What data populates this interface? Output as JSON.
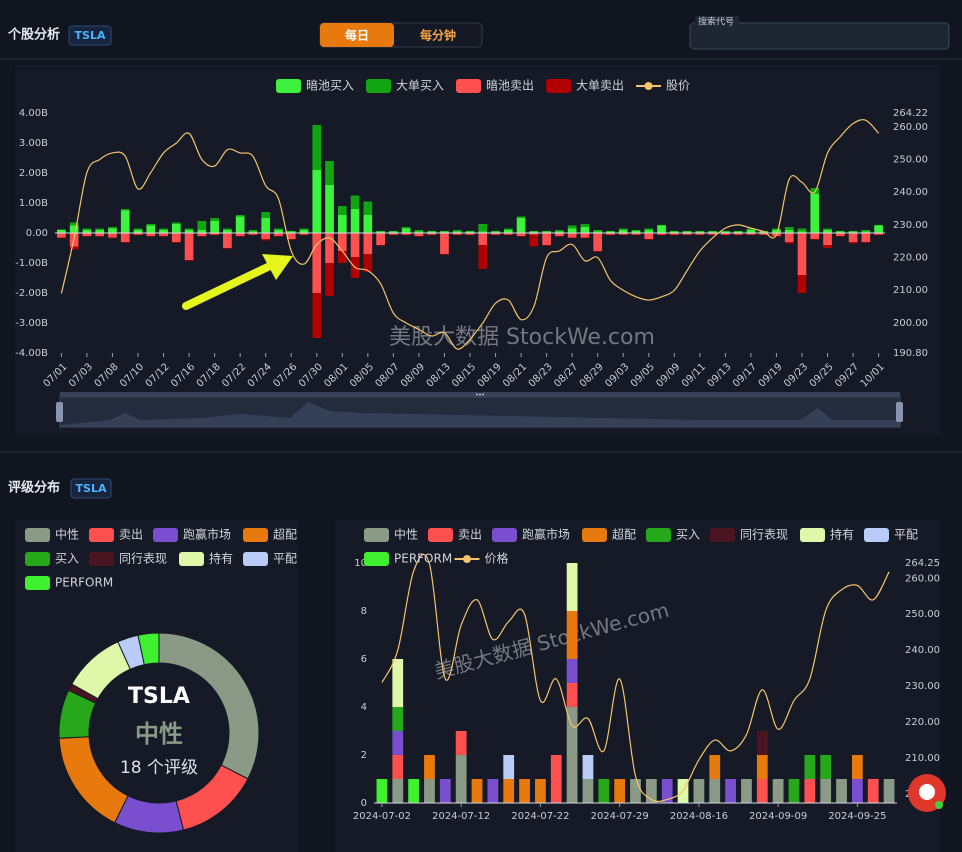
{
  "header": {
    "title": "个股分析",
    "ticker": "TSLA",
    "tabs": [
      "每日",
      "每分钟"
    ],
    "search_placeholder": "搜索代号"
  },
  "rating_section": {
    "title": "评级分布",
    "ticker": "TSLA"
  },
  "chart_data": [
    {
      "type": "bar",
      "stacked": true,
      "watermark": "美股大数据 StockWe.com",
      "categories": [
        "07/01",
        null,
        "07/03",
        null,
        "07/08",
        null,
        "07/10",
        null,
        "07/12",
        null,
        "07/16",
        null,
        "07/18",
        null,
        "07/22",
        null,
        "07/24",
        null,
        "07/26",
        null,
        "07/30",
        null,
        "08/01",
        null,
        "08/05",
        null,
        "08/07",
        null,
        "08/09",
        null,
        "08/13",
        null,
        "08/15",
        null,
        "08/19",
        null,
        "08/21",
        null,
        "08/23",
        null,
        "08/27",
        null,
        "08/29",
        null,
        "09/03",
        null,
        "09/05",
        null,
        "09/09",
        null,
        "09/11",
        null,
        "09/13",
        null,
        "09/17",
        null,
        "09/19",
        null,
        "09/23",
        null,
        "09/25",
        null,
        "09/27",
        null,
        "10/01"
      ],
      "series": [
        {
          "name": "暗池买入",
          "color": "#3cf23c",
          "values": [
            0.1,
            0.25,
            0.1,
            0.1,
            0.15,
            0.75,
            0.1,
            0.25,
            0.1,
            0.3,
            0.1,
            0.1,
            0.4,
            0.1,
            0.55,
            0.05,
            0.5,
            0.1,
            0.05,
            0.1,
            2.1,
            1.6,
            0.6,
            0.8,
            0.6,
            0.05,
            0.05,
            0.15,
            0.05,
            0.05,
            0.05,
            0.05,
            0.05,
            0.05,
            0.05,
            0.1,
            0.5,
            0.05,
            0.05,
            0.05,
            0.15,
            0.2,
            0.05,
            0.05,
            0.1,
            0.08,
            0.1,
            0.25,
            0.05,
            0.05,
            0.05,
            0.05,
            0.05,
            0.05,
            0.1,
            0.05,
            0.1,
            0.1,
            0.05,
            1.3,
            0.1,
            0.05,
            0.05,
            0.05,
            0.25
          ]
        },
        {
          "name": "大单买入",
          "color": "#11a611",
          "values": [
            0.02,
            0.1,
            0.05,
            0.05,
            0.05,
            0.05,
            0.05,
            0.05,
            0.05,
            0.05,
            0.05,
            0.3,
            0.1,
            0.05,
            0.05,
            0.05,
            0.2,
            0.05,
            0.02,
            0.05,
            1.5,
            0.8,
            0.3,
            0.45,
            0.45,
            0.02,
            0.02,
            0.05,
            0.05,
            0.02,
            0.02,
            0.05,
            0.02,
            0.25,
            0.02,
            0.05,
            0.05,
            0.02,
            0.02,
            0.05,
            0.1,
            0.1,
            0.05,
            0.02,
            0.05,
            0.02,
            0.05,
            0.02,
            0.02,
            0.02,
            0.02,
            0.02,
            0.02,
            0.02,
            0.05,
            0.02,
            0.05,
            0.1,
            0.1,
            0.2,
            0.05,
            0.02,
            0.02,
            0.05,
            0.02
          ]
        },
        {
          "name": "暗池卖出",
          "color": "#ff4f4f",
          "values": [
            -0.15,
            -0.45,
            -0.1,
            -0.1,
            -0.15,
            -0.3,
            -0.05,
            -0.1,
            -0.1,
            -0.3,
            -0.9,
            -0.1,
            -0.05,
            -0.5,
            -0.1,
            -0.05,
            -0.2,
            -0.1,
            -0.2,
            -0.05,
            -2.0,
            -1.0,
            -0.6,
            -0.8,
            -0.7,
            -0.4,
            -0.05,
            -0.05,
            -0.1,
            -0.05,
            -0.7,
            -0.05,
            -0.05,
            -0.4,
            -0.05,
            -0.05,
            -0.1,
            -0.05,
            -0.4,
            -0.1,
            -0.15,
            -0.15,
            -0.6,
            -0.05,
            -0.05,
            -0.05,
            -0.2,
            -0.05,
            -0.05,
            -0.05,
            -0.05,
            -0.05,
            -0.05,
            -0.05,
            -0.05,
            -0.05,
            -0.1,
            -0.3,
            -1.4,
            -0.2,
            -0.4,
            -0.1,
            -0.3,
            -0.3,
            -0.05
          ]
        },
        {
          "name": "大单卖出",
          "color": "#b00000",
          "values": [
            -0.02,
            -0.1,
            -0.02,
            -0.02,
            -0.02,
            -0.02,
            -0.02,
            -0.02,
            -0.02,
            -0.02,
            -0.02,
            -0.02,
            -0.02,
            -0.02,
            -0.02,
            -0.02,
            -0.05,
            -0.02,
            -0.02,
            -0.02,
            -1.5,
            -1.1,
            -0.4,
            -0.7,
            -0.6,
            -0.02,
            -0.02,
            -0.02,
            -0.02,
            -0.02,
            -0.02,
            -0.02,
            -0.02,
            -0.8,
            -0.02,
            -0.02,
            -0.02,
            -0.4,
            -0.02,
            -0.02,
            -0.02,
            -0.02,
            -0.02,
            -0.02,
            -0.02,
            -0.02,
            -0.02,
            -0.02,
            -0.02,
            -0.02,
            -0.02,
            -0.02,
            -0.02,
            -0.02,
            -0.02,
            -0.02,
            -0.02,
            -0.05,
            -0.6,
            -0.02,
            -0.1,
            -0.02,
            -0.05,
            -0.02,
            -0.02
          ]
        },
        {
          "name": "股价",
          "color": "#f5c36a",
          "axis": "y2",
          "values": [
            209,
            226,
            246,
            250,
            252,
            251,
            241,
            246,
            252,
            255,
            258,
            250,
            248,
            253,
            252,
            251,
            242,
            238,
            222,
            218,
            224,
            226,
            222,
            217,
            216,
            212,
            203,
            200,
            198,
            196,
            197,
            192,
            195,
            200,
            206,
            207,
            201,
            205,
            220,
            222,
            224,
            219,
            220,
            213,
            210,
            208,
            207,
            208,
            210,
            216,
            222,
            226,
            229,
            230,
            229,
            228,
            227,
            244,
            243,
            240,
            252,
            257,
            261,
            262,
            258
          ]
        }
      ],
      "ylim": [
        -4,
        4
      ],
      "yticks": [
        {
          "value": -4,
          "label": "-4.00B"
        },
        {
          "value": -3,
          "label": "-3.00B"
        },
        {
          "value": -2,
          "label": "-2.00B"
        },
        {
          "value": -1,
          "label": "-1.00B"
        },
        {
          "value": 0,
          "label": "0.00"
        },
        {
          "value": 1,
          "label": "1.00B"
        },
        {
          "value": 2,
          "label": "2.00B"
        },
        {
          "value": 3,
          "label": "3.00B"
        },
        {
          "value": 4,
          "label": "4.00B"
        }
      ],
      "y2lim": [
        190.8,
        264.22
      ],
      "y2ticks": [
        {
          "value": 190.8,
          "label": "190.80"
        },
        {
          "value": 200,
          "label": "200.00"
        },
        {
          "value": 210,
          "label": "210.00"
        },
        {
          "value": 220,
          "label": "220.00"
        },
        {
          "value": 230,
          "label": "230.00"
        },
        {
          "value": 240,
          "label": "240.00"
        },
        {
          "value": 250,
          "label": "250.00"
        },
        {
          "value": 260,
          "label": "260.00"
        },
        {
          "value": 264.22,
          "label": "264.22"
        }
      ],
      "grid": false
    },
    {
      "type": "pie",
      "donut": true,
      "center_title": "TSLA",
      "center_label": "中性",
      "center_text": "18 个评级",
      "categories": [
        "中性",
        "卖出",
        "跑赢市场",
        "超配",
        "买入",
        "同行表现",
        "持有",
        "平配",
        "PERFORM"
      ],
      "values": [
        29,
        12,
        10,
        15,
        7,
        1,
        9,
        3,
        3
      ],
      "colors": [
        "#8a9a86",
        "#ff5050",
        "#7a4fcf",
        "#e8790c",
        "#27a81b",
        "#4a1520",
        "#def7a8",
        "#b9ccf7",
        "#3ef02d"
      ]
    },
    {
      "type": "bar",
      "stacked": true,
      "watermark": "美股大数据 StockWe.com",
      "categories": [
        "2024-07-02",
        null,
        null,
        null,
        null,
        "2024-07-12",
        null,
        null,
        null,
        null,
        "2024-07-22",
        null,
        null,
        null,
        null,
        "2024-07-29",
        null,
        null,
        null,
        null,
        "2024-08-16",
        null,
        null,
        null,
        null,
        "2024-09-09",
        null,
        null,
        null,
        null,
        "2024-09-25",
        null,
        null
      ],
      "series": [
        {
          "name": "中性",
          "color": "#8a9a86",
          "values": [
            0,
            1,
            0,
            1,
            0,
            2,
            0,
            0,
            0,
            0,
            0,
            0,
            4,
            1,
            0,
            0,
            1,
            1,
            0,
            0,
            1,
            1,
            0,
            1,
            0,
            1,
            0,
            0,
            1,
            1,
            0,
            0,
            1
          ]
        },
        {
          "name": "卖出",
          "color": "#ff5050",
          "values": [
            0,
            1,
            0,
            0,
            0,
            1,
            0,
            0,
            0,
            0,
            0,
            2,
            1,
            0,
            0,
            0,
            0,
            0,
            0,
            0,
            0,
            0,
            0,
            0,
            1,
            0,
            0,
            1,
            0,
            0,
            0,
            1,
            0
          ]
        },
        {
          "name": "跑赢市场",
          "color": "#7a4fcf",
          "values": [
            0,
            1,
            0,
            0,
            1,
            0,
            0,
            1,
            0,
            0,
            0,
            0,
            1,
            0,
            0,
            0,
            0,
            0,
            1,
            0,
            0,
            0,
            1,
            0,
            0,
            0,
            0,
            0,
            0,
            0,
            1,
            0,
            0
          ]
        },
        {
          "name": "超配",
          "color": "#e8790c",
          "values": [
            0,
            0,
            0,
            1,
            0,
            0,
            1,
            0,
            1,
            1,
            1,
            0,
            2,
            0,
            0,
            1,
            0,
            0,
            0,
            0,
            0,
            1,
            0,
            0,
            1,
            0,
            0,
            0,
            0,
            0,
            1,
            0,
            0
          ]
        },
        {
          "name": "买入",
          "color": "#27a81b",
          "values": [
            0,
            1,
            0,
            0,
            0,
            0,
            0,
            0,
            0,
            0,
            0,
            0,
            0,
            0,
            1,
            0,
            0,
            0,
            0,
            0,
            0,
            0,
            0,
            0,
            0,
            0,
            1,
            1,
            1,
            0,
            0,
            0,
            0
          ]
        },
        {
          "name": "同行表现",
          "color": "#4a1520",
          "values": [
            0,
            0,
            0,
            0,
            0,
            0,
            0,
            0,
            0,
            0,
            0,
            0,
            0,
            0,
            0,
            0,
            0,
            0,
            0,
            0,
            0,
            0,
            0,
            0,
            1,
            0,
            0,
            0,
            0,
            0,
            0,
            0,
            0
          ]
        },
        {
          "name": "持有",
          "color": "#def7a8",
          "values": [
            0,
            2,
            0,
            0,
            0,
            0,
            0,
            0,
            0,
            0,
            0,
            0,
            2,
            0,
            0,
            0,
            0,
            0,
            0,
            1,
            0,
            0,
            0,
            0,
            0,
            0,
            0,
            0,
            0,
            0,
            0,
            0,
            0
          ]
        },
        {
          "name": "平配",
          "color": "#b9ccf7",
          "values": [
            0,
            0,
            0,
            0,
            0,
            0,
            0,
            0,
            1,
            0,
            0,
            0,
            0,
            1,
            0,
            0,
            0,
            0,
            0,
            0,
            0,
            0,
            0,
            0,
            0,
            0,
            0,
            0,
            0,
            0,
            0,
            0,
            0
          ]
        },
        {
          "name": "PERFORM",
          "color": "#3ef02d",
          "values": [
            1,
            0,
            1,
            0,
            0,
            0,
            0,
            0,
            0,
            0,
            0,
            0,
            0,
            0,
            0,
            0,
            0,
            0,
            0,
            0,
            0,
            0,
            0,
            0,
            0,
            0,
            0,
            0,
            0,
            0,
            0,
            0,
            0
          ]
        },
        {
          "name": "价格",
          "color": "#f5c36a",
          "axis": "y2",
          "values": [
            231,
            240,
            262,
            264,
            232,
            247,
            254,
            243,
            248,
            250,
            226,
            232,
            219,
            221,
            212,
            232,
            205,
            198.5,
            198.5,
            201,
            209.5,
            215,
            212,
            216.5,
            229,
            218,
            226,
            232,
            251,
            256.8,
            258,
            254,
            261.8
          ]
        }
      ],
      "ylim": [
        0,
        10
      ],
      "yticks": [
        0,
        2,
        4,
        6,
        8,
        10
      ],
      "y2lim": [
        197.5,
        264.25
      ],
      "y2ticks": [
        {
          "value": 200,
          "label": "200.00"
        },
        {
          "value": 210,
          "label": "210.00"
        },
        {
          "value": 220,
          "label": "220.00"
        },
        {
          "value": 230,
          "label": "230.00"
        },
        {
          "value": 240,
          "label": "240.00"
        },
        {
          "value": 250,
          "label": "250.00"
        },
        {
          "value": 260,
          "label": "260.00"
        },
        {
          "value": 264.25,
          "label": "264.25"
        }
      ],
      "grid": false
    }
  ]
}
